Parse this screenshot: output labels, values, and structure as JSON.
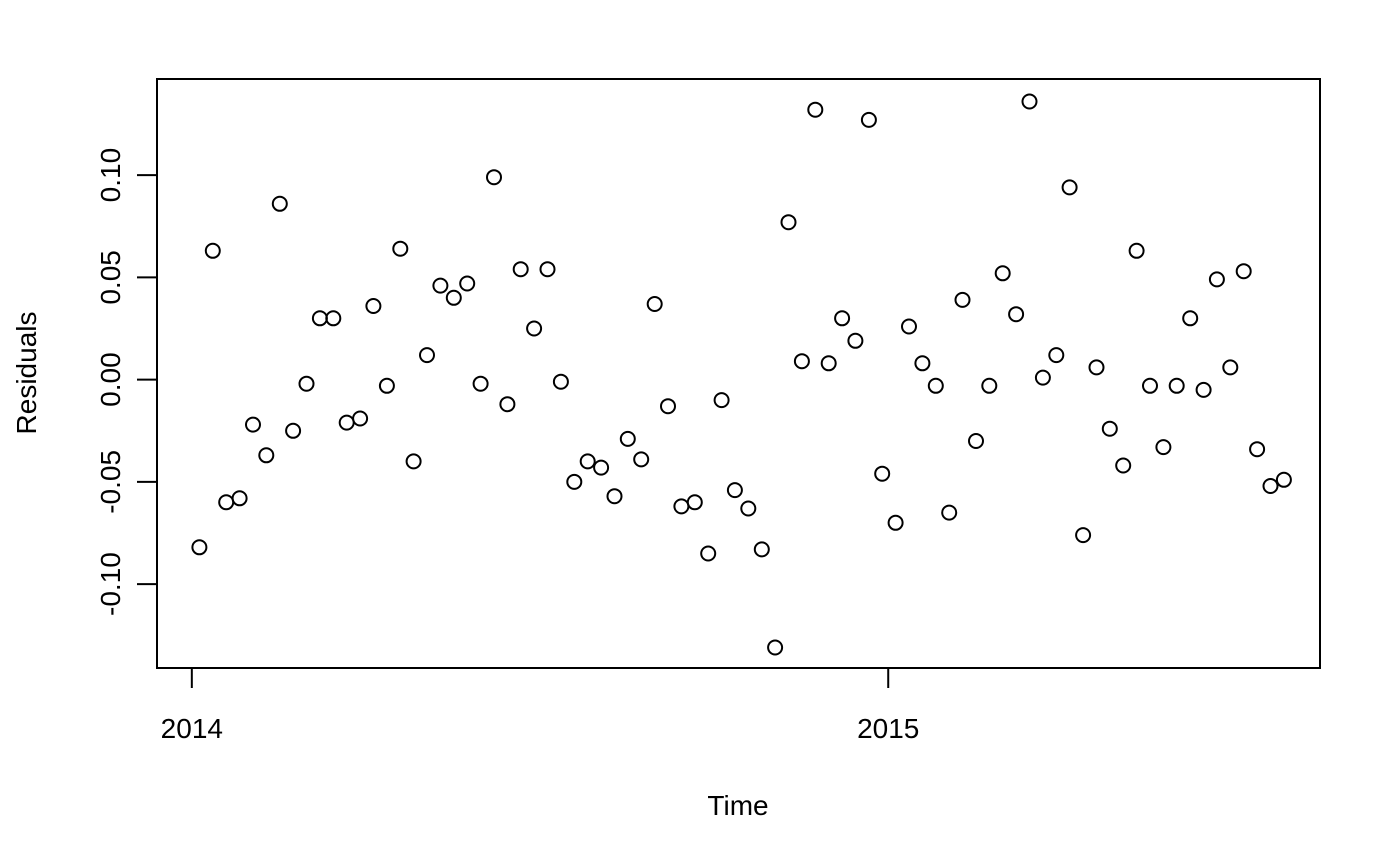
{
  "chart_data": {
    "type": "scatter",
    "title": "",
    "xlabel": "Time",
    "ylabel": "Residuals",
    "xlim": [
      2013.95,
      2015.62
    ],
    "ylim": [
      -0.141,
      0.147
    ],
    "grid": false,
    "legend": "none",
    "x_ticks": [
      {
        "value": 2014,
        "label": "2014"
      },
      {
        "value": 2015,
        "label": "2015"
      }
    ],
    "y_ticks": [
      {
        "value": -0.1,
        "label": "-0.10"
      },
      {
        "value": -0.05,
        "label": "-0.05"
      },
      {
        "value": 0.0,
        "label": "0.00"
      },
      {
        "value": 0.05,
        "label": "0.05"
      },
      {
        "value": 0.1,
        "label": "0.10"
      }
    ],
    "series": [
      {
        "marker": "open-circle",
        "color": "#000000",
        "points": [
          {
            "x": 2014.0109,
            "y": -0.082
          },
          {
            "x": 2014.0301,
            "y": 0.063
          },
          {
            "x": 2014.0494,
            "y": -0.06
          },
          {
            "x": 2014.0686,
            "y": -0.058
          },
          {
            "x": 2014.0878,
            "y": -0.022
          },
          {
            "x": 2014.107,
            "y": -0.037
          },
          {
            "x": 2014.1263,
            "y": 0.086
          },
          {
            "x": 2014.1455,
            "y": -0.025
          },
          {
            "x": 2014.1647,
            "y": -0.002
          },
          {
            "x": 2014.1839,
            "y": 0.03
          },
          {
            "x": 2014.2032,
            "y": 0.03
          },
          {
            "x": 2014.2224,
            "y": -0.021
          },
          {
            "x": 2014.2416,
            "y": -0.019
          },
          {
            "x": 2014.2608,
            "y": 0.036
          },
          {
            "x": 2014.2801,
            "y": -0.003
          },
          {
            "x": 2014.2993,
            "y": 0.064
          },
          {
            "x": 2014.3185,
            "y": -0.04
          },
          {
            "x": 2014.3377,
            "y": 0.012
          },
          {
            "x": 2014.357,
            "y": 0.046
          },
          {
            "x": 2014.3762,
            "y": 0.04
          },
          {
            "x": 2014.3954,
            "y": 0.047
          },
          {
            "x": 2014.4146,
            "y": -0.002
          },
          {
            "x": 2014.4339,
            "y": 0.099
          },
          {
            "x": 2014.4531,
            "y": -0.012
          },
          {
            "x": 2014.4723,
            "y": 0.054
          },
          {
            "x": 2014.4915,
            "y": 0.025
          },
          {
            "x": 2014.5108,
            "y": 0.054
          },
          {
            "x": 2014.53,
            "y": -0.001
          },
          {
            "x": 2014.5492,
            "y": -0.05
          },
          {
            "x": 2014.5684,
            "y": -0.04
          },
          {
            "x": 2014.5877,
            "y": -0.043
          },
          {
            "x": 2014.6069,
            "y": -0.057
          },
          {
            "x": 2014.6261,
            "y": -0.029
          },
          {
            "x": 2014.6453,
            "y": -0.039
          },
          {
            "x": 2014.6646,
            "y": 0.037
          },
          {
            "x": 2014.6838,
            "y": -0.013
          },
          {
            "x": 2014.703,
            "y": -0.062
          },
          {
            "x": 2014.7222,
            "y": -0.06
          },
          {
            "x": 2014.7415,
            "y": -0.085
          },
          {
            "x": 2014.7607,
            "y": -0.01
          },
          {
            "x": 2014.7799,
            "y": -0.054
          },
          {
            "x": 2014.7991,
            "y": -0.063
          },
          {
            "x": 2014.8184,
            "y": -0.083
          },
          {
            "x": 2014.8376,
            "y": -0.131
          },
          {
            "x": 2014.8568,
            "y": 0.077
          },
          {
            "x": 2014.876,
            "y": 0.009
          },
          {
            "x": 2014.8953,
            "y": 0.132
          },
          {
            "x": 2014.9145,
            "y": 0.008
          },
          {
            "x": 2014.9337,
            "y": 0.03
          },
          {
            "x": 2014.9529,
            "y": 0.019
          },
          {
            "x": 2014.9722,
            "y": 0.127
          },
          {
            "x": 2014.9914,
            "y": -0.046
          },
          {
            "x": 2015.0106,
            "y": -0.07
          },
          {
            "x": 2015.0298,
            "y": 0.026
          },
          {
            "x": 2015.0491,
            "y": 0.008
          },
          {
            "x": 2015.0683,
            "y": -0.003
          },
          {
            "x": 2015.0875,
            "y": -0.065
          },
          {
            "x": 2015.1067,
            "y": 0.039
          },
          {
            "x": 2015.126,
            "y": -0.03
          },
          {
            "x": 2015.1452,
            "y": -0.003
          },
          {
            "x": 2015.1644,
            "y": 0.052
          },
          {
            "x": 2015.1836,
            "y": 0.032
          },
          {
            "x": 2015.2029,
            "y": 0.136
          },
          {
            "x": 2015.2221,
            "y": 0.001
          },
          {
            "x": 2015.2413,
            "y": 0.012
          },
          {
            "x": 2015.2605,
            "y": 0.094
          },
          {
            "x": 2015.2798,
            "y": -0.076
          },
          {
            "x": 2015.299,
            "y": 0.006
          },
          {
            "x": 2015.3182,
            "y": -0.024
          },
          {
            "x": 2015.3374,
            "y": -0.042
          },
          {
            "x": 2015.3567,
            "y": 0.063
          },
          {
            "x": 2015.3759,
            "y": -0.003
          },
          {
            "x": 2015.3951,
            "y": -0.033
          },
          {
            "x": 2015.4143,
            "y": -0.003
          },
          {
            "x": 2015.4336,
            "y": 0.03
          },
          {
            "x": 2015.4528,
            "y": -0.005
          },
          {
            "x": 2015.472,
            "y": 0.049
          },
          {
            "x": 2015.4912,
            "y": 0.006
          },
          {
            "x": 2015.5105,
            "y": 0.053
          },
          {
            "x": 2015.5297,
            "y": -0.034
          },
          {
            "x": 2015.5489,
            "y": -0.052
          },
          {
            "x": 2015.5681,
            "y": -0.049
          }
        ]
      }
    ]
  }
}
